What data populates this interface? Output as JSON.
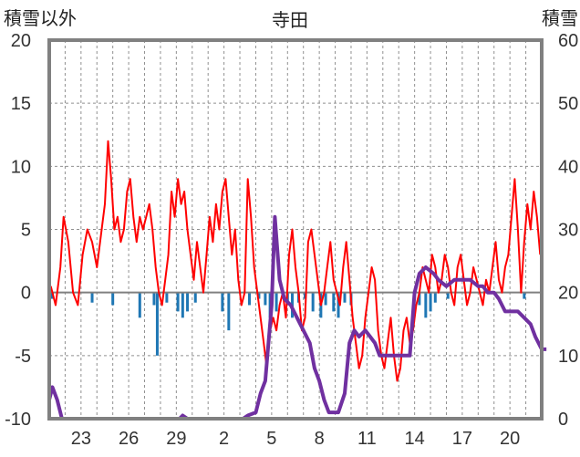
{
  "chart_data": {
    "type": "line",
    "title": "寺田",
    "ylabel_left": "積雪以外",
    "ylabel_right": "積雪",
    "y_left": {
      "ticks": [
        20,
        15,
        10,
        5,
        0,
        -5,
        -10
      ],
      "range": [
        -10,
        20
      ]
    },
    "y_right": {
      "ticks": [
        60,
        50,
        40,
        30,
        20,
        10,
        0
      ],
      "range": [
        0,
        60
      ]
    },
    "x": {
      "ticks": [
        "23",
        "26",
        "29",
        "2",
        "5",
        "8",
        "11",
        "14",
        "17",
        "20"
      ],
      "range": [
        21,
        52
      ],
      "tick_positions": [
        23,
        26,
        29,
        32,
        35,
        38,
        41,
        44,
        47,
        50
      ]
    },
    "grid": true,
    "series": [
      {
        "kind": "temperature-line",
        "axis": "left",
        "color": "#ff0000",
        "points": [
          [
            21.1,
            0.5
          ],
          [
            21.4,
            -1
          ],
          [
            21.7,
            2
          ],
          [
            21.9,
            6
          ],
          [
            22.2,
            4
          ],
          [
            22.5,
            0
          ],
          [
            22.8,
            -1
          ],
          [
            23.1,
            3
          ],
          [
            23.4,
            5
          ],
          [
            23.7,
            4
          ],
          [
            24.0,
            2
          ],
          [
            24.3,
            5
          ],
          [
            24.5,
            7
          ],
          [
            24.7,
            12
          ],
          [
            24.9,
            9
          ],
          [
            25.1,
            5
          ],
          [
            25.3,
            6
          ],
          [
            25.5,
            4
          ],
          [
            25.7,
            5
          ],
          [
            25.9,
            8
          ],
          [
            26.1,
            9
          ],
          [
            26.3,
            6
          ],
          [
            26.5,
            4
          ],
          [
            26.7,
            6
          ],
          [
            26.9,
            5
          ],
          [
            27.1,
            6
          ],
          [
            27.3,
            7
          ],
          [
            27.5,
            5
          ],
          [
            27.7,
            2
          ],
          [
            27.9,
            0
          ],
          [
            28.1,
            -1
          ],
          [
            28.3,
            1
          ],
          [
            28.5,
            3
          ],
          [
            28.7,
            8
          ],
          [
            28.9,
            6
          ],
          [
            29.1,
            9
          ],
          [
            29.3,
            7
          ],
          [
            29.5,
            8
          ],
          [
            29.7,
            5
          ],
          [
            29.9,
            3
          ],
          [
            30.1,
            1
          ],
          [
            30.3,
            4
          ],
          [
            30.5,
            2
          ],
          [
            30.7,
            0
          ],
          [
            30.9,
            3
          ],
          [
            31.1,
            6
          ],
          [
            31.3,
            4
          ],
          [
            31.5,
            7
          ],
          [
            31.7,
            5
          ],
          [
            31.9,
            8
          ],
          [
            32.1,
            9
          ],
          [
            32.3,
            6
          ],
          [
            32.5,
            3
          ],
          [
            32.7,
            5
          ],
          [
            32.9,
            1
          ],
          [
            33.1,
            -1
          ],
          [
            33.3,
            0
          ],
          [
            33.5,
            9
          ],
          [
            33.7,
            6
          ],
          [
            33.9,
            2
          ],
          [
            34.1,
            0
          ],
          [
            34.3,
            -2
          ],
          [
            34.5,
            -4
          ],
          [
            34.7,
            -6
          ],
          [
            34.9,
            -3
          ],
          [
            35.1,
            -2
          ],
          [
            35.3,
            -3
          ],
          [
            35.5,
            -1
          ],
          [
            35.7,
            0
          ],
          [
            35.9,
            -2
          ],
          [
            36.1,
            3
          ],
          [
            36.3,
            5
          ],
          [
            36.5,
            2
          ],
          [
            36.7,
            0
          ],
          [
            36.9,
            -3
          ],
          [
            37.1,
            -2
          ],
          [
            37.3,
            4
          ],
          [
            37.5,
            5
          ],
          [
            37.7,
            3
          ],
          [
            37.9,
            1
          ],
          [
            38.1,
            -1
          ],
          [
            38.3,
            0
          ],
          [
            38.5,
            2
          ],
          [
            38.7,
            4
          ],
          [
            38.9,
            1
          ],
          [
            39.1,
            0
          ],
          [
            39.3,
            -1
          ],
          [
            39.5,
            2
          ],
          [
            39.7,
            4
          ],
          [
            39.9,
            1
          ],
          [
            40.1,
            -2
          ],
          [
            40.3,
            -4
          ],
          [
            40.5,
            -6
          ],
          [
            40.7,
            -5
          ],
          [
            40.9,
            -2
          ],
          [
            41.1,
            0
          ],
          [
            41.3,
            2
          ],
          [
            41.5,
            1
          ],
          [
            41.7,
            -3
          ],
          [
            41.9,
            -5
          ],
          [
            42.1,
            -6
          ],
          [
            42.3,
            -4
          ],
          [
            42.5,
            -2
          ],
          [
            42.7,
            -5
          ],
          [
            42.9,
            -7
          ],
          [
            43.1,
            -6
          ],
          [
            43.3,
            -3
          ],
          [
            43.5,
            -2
          ],
          [
            43.7,
            -4
          ],
          [
            43.9,
            -3
          ],
          [
            44.1,
            -1
          ],
          [
            44.3,
            0
          ],
          [
            44.5,
            2
          ],
          [
            44.7,
            1
          ],
          [
            44.9,
            0
          ],
          [
            45.1,
            3
          ],
          [
            45.3,
            2
          ],
          [
            45.5,
            0
          ],
          [
            45.7,
            1
          ],
          [
            45.9,
            3
          ],
          [
            46.1,
            2
          ],
          [
            46.3,
            0
          ],
          [
            46.5,
            -1
          ],
          [
            46.7,
            2
          ],
          [
            46.9,
            3
          ],
          [
            47.1,
            1
          ],
          [
            47.3,
            -1
          ],
          [
            47.5,
            0
          ],
          [
            47.7,
            2
          ],
          [
            47.9,
            1
          ],
          [
            48.1,
            0
          ],
          [
            48.3,
            -1
          ],
          [
            48.5,
            1
          ],
          [
            48.7,
            0
          ],
          [
            48.9,
            2
          ],
          [
            49.1,
            4
          ],
          [
            49.3,
            1
          ],
          [
            49.5,
            0
          ],
          [
            49.7,
            2
          ],
          [
            49.9,
            3
          ],
          [
            50.1,
            6
          ],
          [
            50.3,
            9
          ],
          [
            50.5,
            5
          ],
          [
            50.7,
            0
          ],
          [
            50.9,
            4
          ],
          [
            51.1,
            7
          ],
          [
            51.3,
            5
          ],
          [
            51.5,
            8
          ],
          [
            51.7,
            6
          ],
          [
            51.9,
            3
          ]
        ]
      },
      {
        "kind": "precipitation-bars",
        "axis": "left",
        "color": "#1f77b4",
        "points": [
          [
            21.2,
            -0.5
          ],
          [
            23.7,
            -0.8
          ],
          [
            25.0,
            -1.0
          ],
          [
            26.7,
            -2.0
          ],
          [
            27.6,
            -1.0
          ],
          [
            27.8,
            -5.0
          ],
          [
            28.4,
            -0.8
          ],
          [
            29.1,
            -1.5
          ],
          [
            29.4,
            -2.0
          ],
          [
            29.7,
            -1.5
          ],
          [
            30.2,
            -0.8
          ],
          [
            31.9,
            -1.5
          ],
          [
            32.3,
            -3.0
          ],
          [
            33.6,
            -1.0
          ],
          [
            34.2,
            -0.5
          ],
          [
            34.6,
            -1.0
          ],
          [
            34.9,
            -2.0
          ],
          [
            35.3,
            -1.5
          ],
          [
            36.0,
            -1.0
          ],
          [
            36.3,
            -2.0
          ],
          [
            36.7,
            -0.8
          ],
          [
            37.1,
            -0.5
          ],
          [
            37.6,
            -1.5
          ],
          [
            38.1,
            -2.0
          ],
          [
            38.4,
            -1.0
          ],
          [
            38.9,
            -1.5
          ],
          [
            39.2,
            -2.0
          ],
          [
            39.6,
            -0.8
          ],
          [
            40.0,
            -1.0
          ],
          [
            44.3,
            -1.0
          ],
          [
            44.7,
            -2.0
          ],
          [
            45.0,
            -1.5
          ],
          [
            45.3,
            -0.8
          ],
          [
            46.1,
            -0.5
          ],
          [
            50.9,
            -0.5
          ]
        ]
      },
      {
        "kind": "snow-depth-line",
        "axis": "right",
        "color": "#7030a0",
        "points": [
          [
            21.0,
            3
          ],
          [
            21.2,
            5
          ],
          [
            21.5,
            3
          ],
          [
            21.8,
            0
          ],
          [
            29.2,
            0
          ],
          [
            29.4,
            0.5
          ],
          [
            29.7,
            0
          ],
          [
            33.2,
            0
          ],
          [
            33.5,
            0.5
          ],
          [
            34.0,
            1
          ],
          [
            34.3,
            4
          ],
          [
            34.6,
            6
          ],
          [
            35.0,
            18
          ],
          [
            35.2,
            32
          ],
          [
            35.5,
            22
          ],
          [
            35.8,
            19
          ],
          [
            36.2,
            18
          ],
          [
            36.6,
            16
          ],
          [
            37.0,
            14
          ],
          [
            37.4,
            12
          ],
          [
            37.7,
            8
          ],
          [
            38.0,
            6
          ],
          [
            38.3,
            3
          ],
          [
            38.6,
            1
          ],
          [
            39.0,
            1
          ],
          [
            39.2,
            1
          ],
          [
            39.6,
            4
          ],
          [
            39.9,
            12
          ],
          [
            40.2,
            14
          ],
          [
            40.5,
            13
          ],
          [
            40.9,
            14
          ],
          [
            41.2,
            13
          ],
          [
            41.5,
            12
          ],
          [
            41.8,
            10
          ],
          [
            42.2,
            10
          ],
          [
            43.0,
            10
          ],
          [
            43.7,
            10
          ],
          [
            44.0,
            20
          ],
          [
            44.3,
            23
          ],
          [
            44.7,
            24
          ],
          [
            45.2,
            23
          ],
          [
            45.5,
            22
          ],
          [
            46.0,
            21
          ],
          [
            46.5,
            22
          ],
          [
            47.0,
            22
          ],
          [
            47.5,
            22
          ],
          [
            48.0,
            21
          ],
          [
            48.3,
            21
          ],
          [
            48.6,
            20
          ],
          [
            49.0,
            20
          ],
          [
            49.3,
            19
          ],
          [
            49.7,
            17
          ],
          [
            50.1,
            17
          ],
          [
            50.5,
            17
          ],
          [
            50.9,
            16
          ],
          [
            51.3,
            15
          ],
          [
            51.6,
            13
          ],
          [
            51.8,
            12
          ],
          [
            52.0,
            11
          ],
          [
            52.3,
            11
          ]
        ]
      }
    ]
  }
}
